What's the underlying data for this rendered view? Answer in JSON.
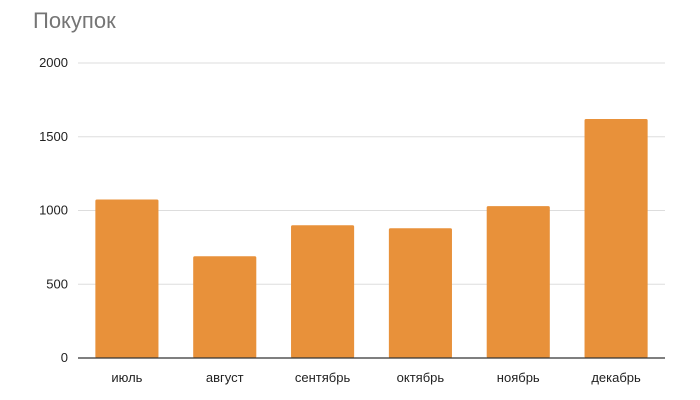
{
  "chart_data": {
    "type": "bar",
    "title": "Покупок",
    "xlabel": "",
    "ylabel": "",
    "categories": [
      "июль",
      "август",
      "сентябрь",
      "октябрь",
      "ноябрь",
      "декабрь"
    ],
    "values": [
      1075,
      690,
      900,
      880,
      1030,
      1620
    ],
    "ylim": [
      0,
      2000
    ],
    "yticks": [
      0,
      500,
      1000,
      1500,
      2000
    ],
    "ytick_labels": [
      "0",
      "500",
      "1000",
      "1500",
      "2000"
    ],
    "grid": true,
    "legend": "none",
    "bar_color": "#E8913A",
    "grid_color": "#DDDDDD",
    "axis_color": "#333333"
  }
}
